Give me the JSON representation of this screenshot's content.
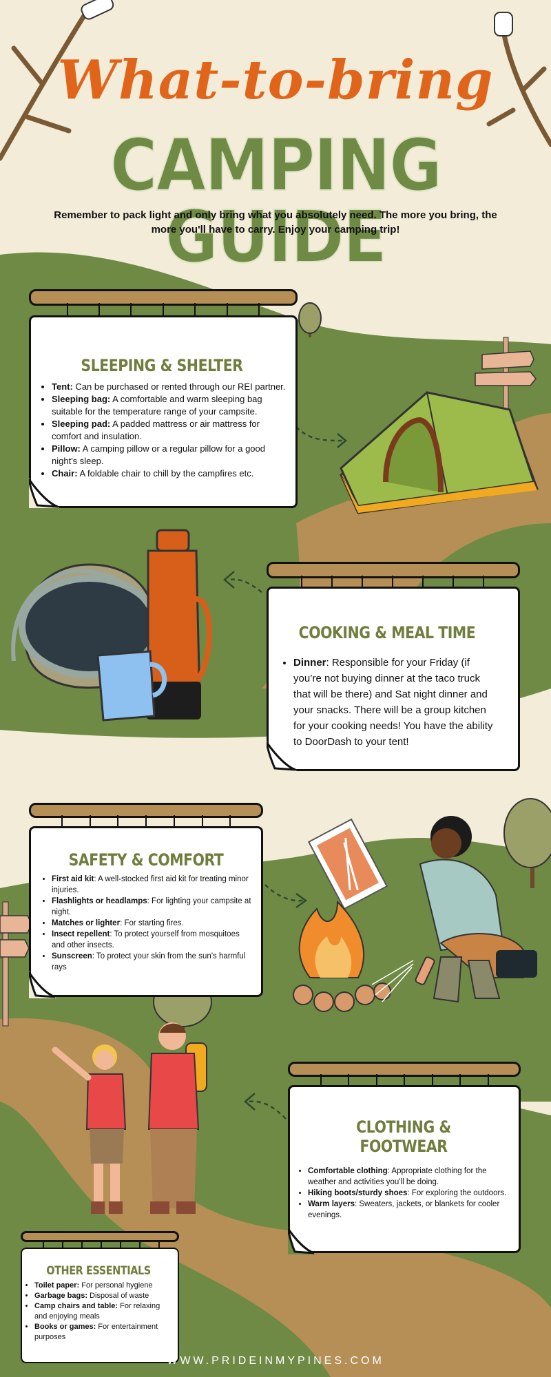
{
  "header": {
    "title_script": "What-to-bring",
    "title_main": "CAMPING GUIDE",
    "intro": "Remember to pack light and only bring what you absolutely need. The more you bring, the more you'll have to carry. Enjoy your camping trip!"
  },
  "sections": {
    "sleeping": {
      "title": "SLEEPING & SHELTER",
      "items": [
        {
          "term": "Tent:",
          "desc": " Can be purchased or rented through our REI partner."
        },
        {
          "term": "Sleeping bag:",
          "desc": " A comfortable and warm sleeping bag suitable for the temperature range of your campsite."
        },
        {
          "term": "Sleeping pad:",
          "desc": " A padded mattress or air mattress for comfort and insulation."
        },
        {
          "term": "Pillow:",
          "desc": " A camping pillow or a regular pillow for a good night's sleep."
        },
        {
          "term": "Chair:",
          "desc": " A foldable chair to chill by the campfires etc."
        }
      ]
    },
    "cooking": {
      "title": "COOKING & MEAL TIME",
      "items": [
        {
          "term": "Dinner",
          "desc": ": Responsible for your Friday (if you’re not buying dinner at the taco truck that will be there) and Sat night dinner and your snacks. There will be a group kitchen for your cooking needs! You have the ability to DoorDash to your tent!"
        }
      ]
    },
    "safety": {
      "title": "SAFETY & COMFORT",
      "items": [
        {
          "term": "First aid kit",
          "desc": ": A well-stocked first aid kit for treating minor injuries."
        },
        {
          "term": "Flashlights or headlamps",
          "desc": ": For lighting your campsite at night."
        },
        {
          "term": "Matches or lighter",
          "desc": ": For starting fires."
        },
        {
          "term": "Insect repellent",
          "desc": ": To protect yourself from mosquitoes and other insects."
        },
        {
          "term": "Sunscreen",
          "desc": ": To protect your skin from the sun's harmful rays"
        }
      ]
    },
    "clothing": {
      "title": "CLOTHING & FOOTWEAR",
      "items": [
        {
          "term": "Comfortable clothing",
          "desc": ": Appropriate clothing for the weather and activities you'll be doing."
        },
        {
          "term": "Hiking boots/sturdy shoes",
          "desc": ": For exploring the outdoors."
        },
        {
          "term": "Warm layers",
          "desc": ": Sweaters, jackets, or blankets for cooler evenings."
        }
      ]
    },
    "other": {
      "title": "OTHER ESSENTIALS",
      "items": [
        {
          "term": "Toilet paper:",
          "desc": " For personal hygiene"
        },
        {
          "term": "Garbage bags:",
          "desc": " Disposal of waste"
        },
        {
          "term": "Camp chairs and table:",
          "desc": " For relaxing and enjoying meals"
        },
        {
          "term": "Books or games:",
          "desc": " For entertainment purposes"
        }
      ]
    }
  },
  "footer": "WWW.PRIDEINMYPINES.COM",
  "colors": {
    "background": "#f3ecd9",
    "grass": "#6f8a45",
    "path": "#b58f55",
    "title_orange": "#e0651a",
    "title_green": "#6f8a45"
  },
  "icons": [
    "branch-icon",
    "marshmallow-icon",
    "tent-icon",
    "signpost-icon",
    "tree-icon",
    "pot-icon",
    "thermos-icon",
    "mug-icon",
    "matchbox-icon",
    "campfire-icon",
    "camper-woman-icon",
    "hikers-icon",
    "arrow-icon"
  ]
}
